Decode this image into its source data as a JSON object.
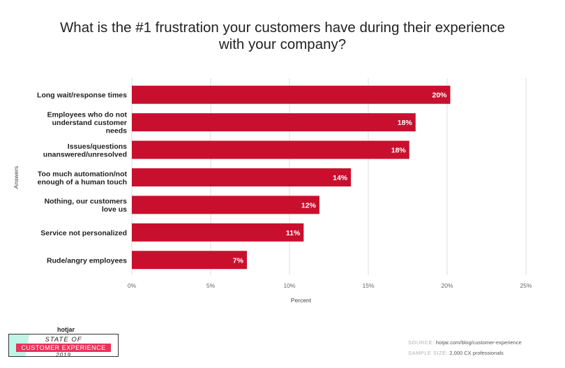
{
  "chart_data": {
    "type": "bar",
    "orientation": "horizontal",
    "title": "What is the #1 frustration your customers have during their experience with your company?",
    "title_lines": [
      "What is the #1 frustration your customers have during their experience",
      "with your company?"
    ],
    "xlabel": "Percent",
    "ylabel": "Answers",
    "categories": [
      [
        "Long wait/response times"
      ],
      [
        "Employees who do not",
        "understand customer",
        "needs"
      ],
      [
        "Issues/questions",
        "unanswered/unresolved"
      ],
      [
        "Too much automation/not",
        "enough of a human touch"
      ],
      [
        "Nothing, our customers",
        "love us"
      ],
      [
        "Service not personalized"
      ],
      [
        "Rude/angry employees"
      ]
    ],
    "values": [
      20.2,
      18,
      17.6,
      13.9,
      11.9,
      10.9,
      7.3
    ],
    "value_labels": [
      "20%",
      "18%",
      "18%",
      "14%",
      "12%",
      "11%",
      "7%"
    ],
    "xlim": [
      0,
      25
    ],
    "xticks": [
      0,
      5,
      10,
      15,
      20,
      25
    ],
    "xtick_labels": [
      "0%",
      "5%",
      "10%",
      "15%",
      "20%",
      "25%"
    ],
    "grid": true,
    "bar_color": "#c8102e",
    "legend": "none"
  },
  "branding": {
    "logo": "hotjar",
    "line1": "STATE OF",
    "line2": "CUSTOMER EXPERIENCE",
    "line3": "2019"
  },
  "footer": {
    "source_label": "SOURCE:",
    "source_value": "hotjar.com/blog/customer-experience",
    "sample_label": "SAMPLE SIZE:",
    "sample_value": "2,000 CX professionals"
  },
  "colors": {
    "bar": "#c8102e",
    "grid": "#dddddd",
    "brand_pink": "#e8335a",
    "brand_mint": "#bff5e6"
  }
}
